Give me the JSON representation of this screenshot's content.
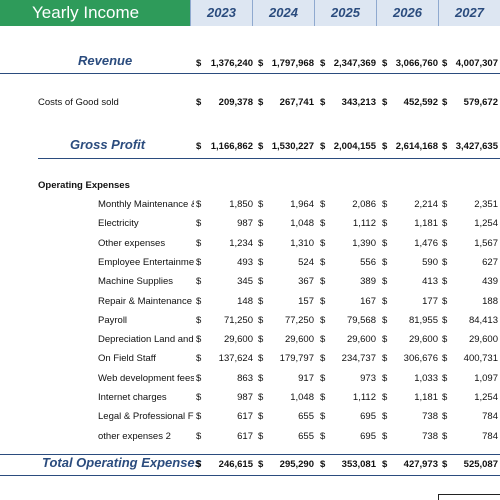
{
  "header": {
    "title": "Yearly Income Statement",
    "years": [
      "2023",
      "2024",
      "2025",
      "2026",
      "2027"
    ]
  },
  "currency": "$",
  "revenue": {
    "label": "Revenue",
    "values": [
      "1,376,240",
      "1,797,968",
      "2,347,369",
      "3,066,760",
      "4,007,307"
    ]
  },
  "cogs": {
    "label": "Costs of Good sold",
    "values": [
      "209,378",
      "267,741",
      "343,213",
      "452,592",
      "579,672"
    ]
  },
  "gross_profit": {
    "label": "Gross Profit",
    "values": [
      "1,166,862",
      "1,530,227",
      "2,004,155",
      "2,614,168",
      "3,427,635"
    ]
  },
  "opex": {
    "heading": "Operating Expenses",
    "rows": [
      {
        "label": "Monthly Maintenance & Utilities",
        "values": [
          "1,850",
          "1,964",
          "2,086",
          "2,214",
          "2,351"
        ]
      },
      {
        "label": "Electricity",
        "values": [
          "987",
          "1,048",
          "1,112",
          "1,181",
          "1,254"
        ]
      },
      {
        "label": "Other expenses",
        "values": [
          "1,234",
          "1,310",
          "1,390",
          "1,476",
          "1,567"
        ]
      },
      {
        "label": "Employee Entertainment",
        "values": [
          "493",
          "524",
          "556",
          "590",
          "627"
        ]
      },
      {
        "label": "Machine Supplies",
        "values": [
          "345",
          "367",
          "389",
          "413",
          "439"
        ]
      },
      {
        "label": "Repair & Maintenance",
        "values": [
          "148",
          "157",
          "167",
          "177",
          "188"
        ]
      },
      {
        "label": "Payroll",
        "values": [
          "71,250",
          "77,250",
          "79,568",
          "81,955",
          "84,413"
        ]
      },
      {
        "label": "Depreciation Land and Building",
        "values": [
          "29,600",
          "29,600",
          "29,600",
          "29,600",
          "29,600"
        ]
      },
      {
        "label": "On Field Staff",
        "values": [
          "137,624",
          "179,797",
          "234,737",
          "306,676",
          "400,731"
        ]
      },
      {
        "label": "Web development fees",
        "values": [
          "863",
          "917",
          "973",
          "1,033",
          "1,097"
        ]
      },
      {
        "label": "Internet charges",
        "values": [
          "987",
          "1,048",
          "1,112",
          "1,181",
          "1,254"
        ]
      },
      {
        "label": "Legal & Professional Fees",
        "values": [
          "617",
          "655",
          "695",
          "738",
          "784"
        ]
      },
      {
        "label": "other expenses 2",
        "values": [
          "617",
          "655",
          "695",
          "738",
          "784"
        ]
      }
    ]
  },
  "total_opex": {
    "label": "Total Operating Expenses",
    "values": [
      "246,615",
      "295,290",
      "353,081",
      "427,973",
      "525,087"
    ]
  }
}
